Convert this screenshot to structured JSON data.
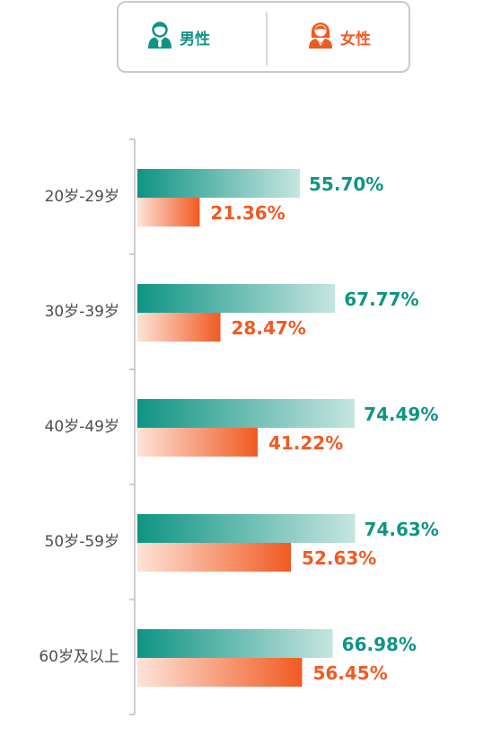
{
  "legend": {
    "male_label": "男性",
    "female_label": "女性",
    "male_icon": "male-person-icon",
    "female_icon": "female-person-icon"
  },
  "colors": {
    "male": "#0f9484",
    "male_light": "#c6e5e0",
    "female": "#f15a22",
    "female_light": "#fde3d8",
    "axis": "#cccccc"
  },
  "chart_data": {
    "type": "bar",
    "orientation": "horizontal",
    "categories": [
      "20岁-29岁",
      "30岁-39岁",
      "40岁-49岁",
      "50岁-59岁",
      "60岁及以上"
    ],
    "series": [
      {
        "name": "男性",
        "values": [
          55.7,
          67.77,
          74.49,
          74.63,
          66.98
        ],
        "labels": [
          "55.70%",
          "67.77%",
          "74.49%",
          "74.63%",
          "66.98%"
        ]
      },
      {
        "name": "女性",
        "values": [
          21.36,
          28.47,
          41.22,
          52.63,
          56.45
        ],
        "labels": [
          "21.36%",
          "28.47%",
          "41.22%",
          "52.63%",
          "56.45%"
        ]
      }
    ],
    "xlim": [
      0,
      100
    ],
    "grid": false,
    "legend_position": "top"
  }
}
